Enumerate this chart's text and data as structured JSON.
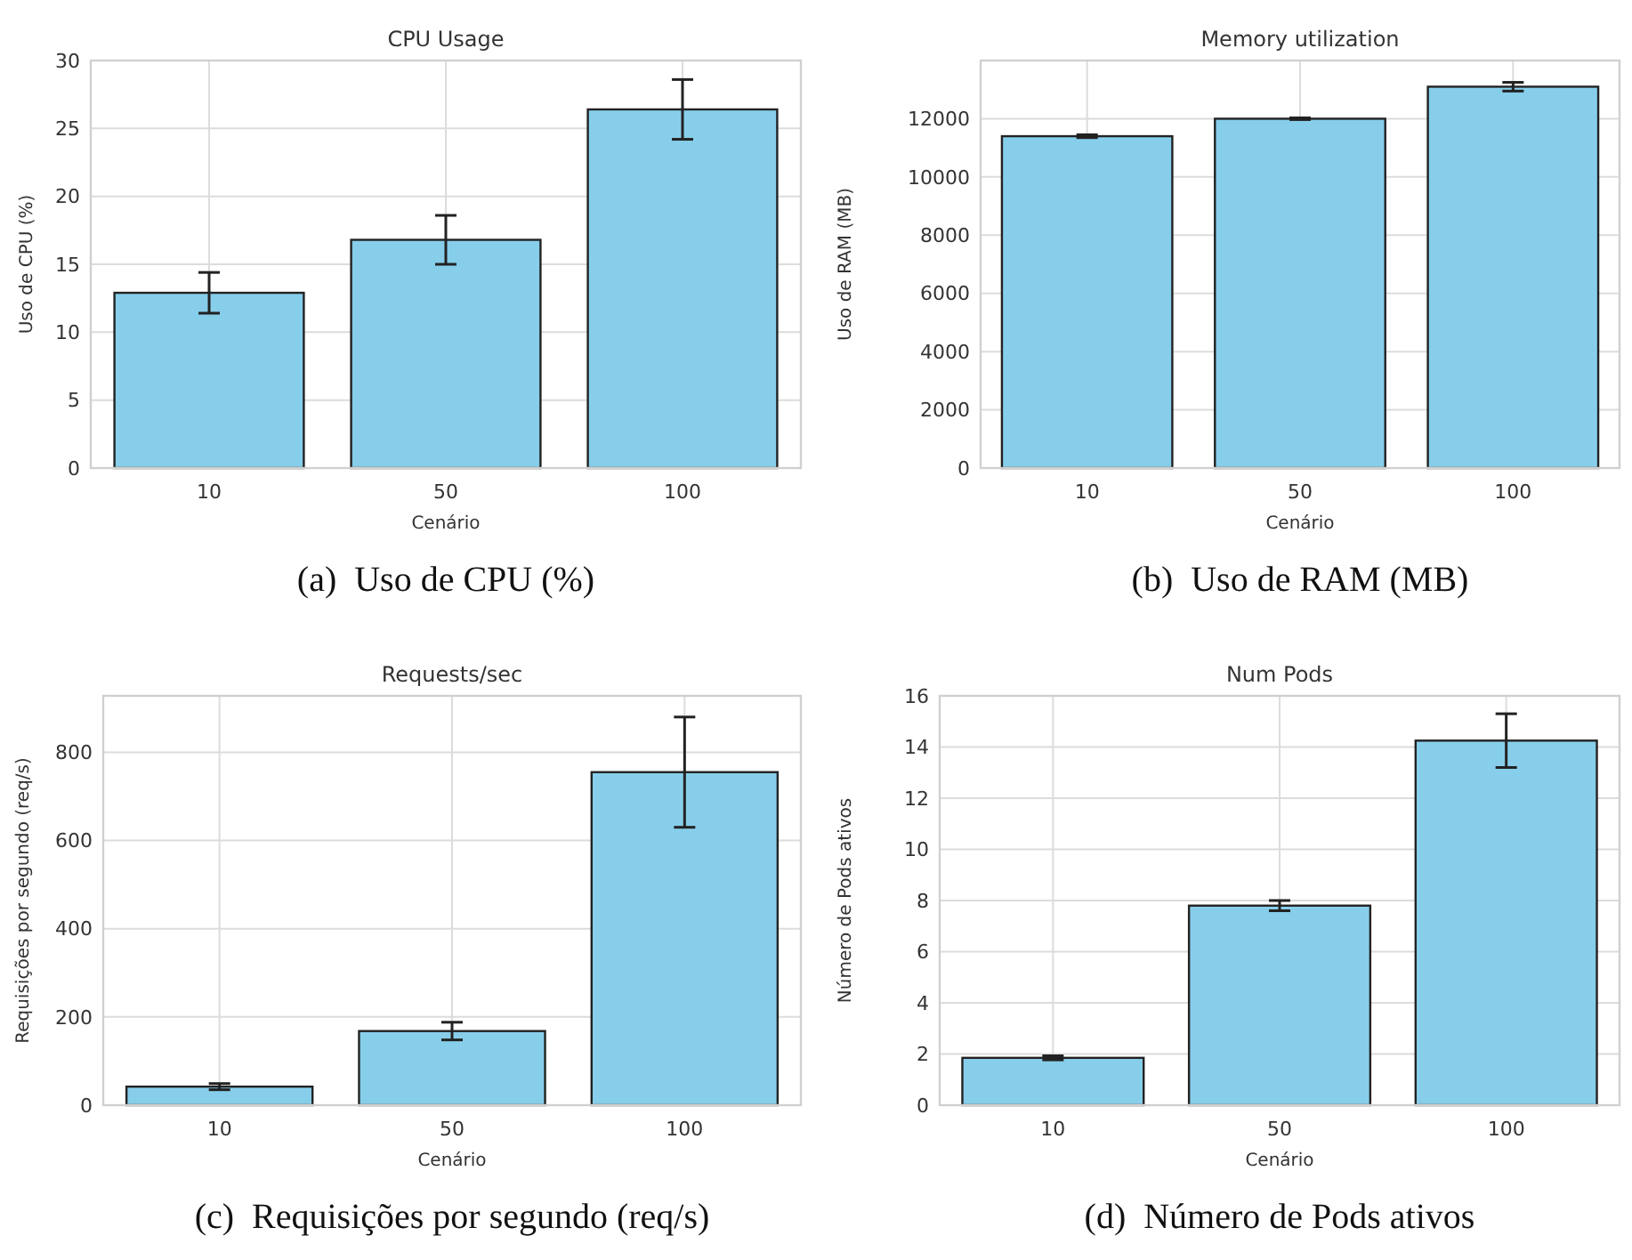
{
  "chart_data": [
    {
      "type": "bar",
      "title": "CPU Usage",
      "xlabel": "Cenário",
      "ylabel": "Uso de CPU (%)",
      "categories": [
        "10",
        "50",
        "100"
      ],
      "values": [
        12.9,
        16.8,
        26.4
      ],
      "errors": [
        1.5,
        1.8,
        2.2
      ],
      "color": "#87ceeb",
      "ylim": [
        0,
        30
      ],
      "yticks": [
        0,
        5,
        10,
        15,
        20,
        25,
        30
      ],
      "grid": true,
      "annotations": [
        "(a)  Uso de CPU (%)"
      ]
    },
    {
      "type": "bar",
      "title": "Memory utilization",
      "xlabel": "Cenário",
      "ylabel": "Uso de RAM (MB)",
      "categories": [
        "10",
        "50",
        "100"
      ],
      "values": [
        11400,
        12000,
        13100
      ],
      "errors": [
        50,
        30,
        150
      ],
      "color": "#87ceeb",
      "ylim": [
        0,
        14000
      ],
      "yticks": [
        0,
        2000,
        4000,
        6000,
        8000,
        10000,
        12000
      ],
      "grid": true,
      "annotations": [
        "(b)  Uso de RAM (MB)"
      ]
    },
    {
      "type": "bar",
      "title": "Requests/sec",
      "xlabel": "Cenário",
      "ylabel": "Requisições por segundo (req/s)",
      "categories": [
        "10",
        "50",
        "100"
      ],
      "values": [
        42,
        168,
        755
      ],
      "errors": [
        7,
        20,
        125
      ],
      "color": "#87ceeb",
      "ylim": [
        0,
        928
      ],
      "yticks": [
        0,
        200,
        400,
        600,
        800
      ],
      "grid": true,
      "annotations": [
        "(c)  Requisições por segundo (req/s)"
      ]
    },
    {
      "type": "bar",
      "title": "Num Pods",
      "xlabel": "Cenário",
      "ylabel": "Número de Pods ativos",
      "categories": [
        "10",
        "50",
        "100"
      ],
      "values": [
        1.85,
        7.8,
        14.25
      ],
      "errors": [
        0.08,
        0.2,
        1.05
      ],
      "color": "#87ceeb",
      "ylim": [
        0,
        16
      ],
      "yticks": [
        0,
        2,
        4,
        6,
        8,
        10,
        12,
        14,
        16
      ],
      "grid": true,
      "annotations": [
        "(d)  Número de Pods ativos"
      ]
    }
  ]
}
